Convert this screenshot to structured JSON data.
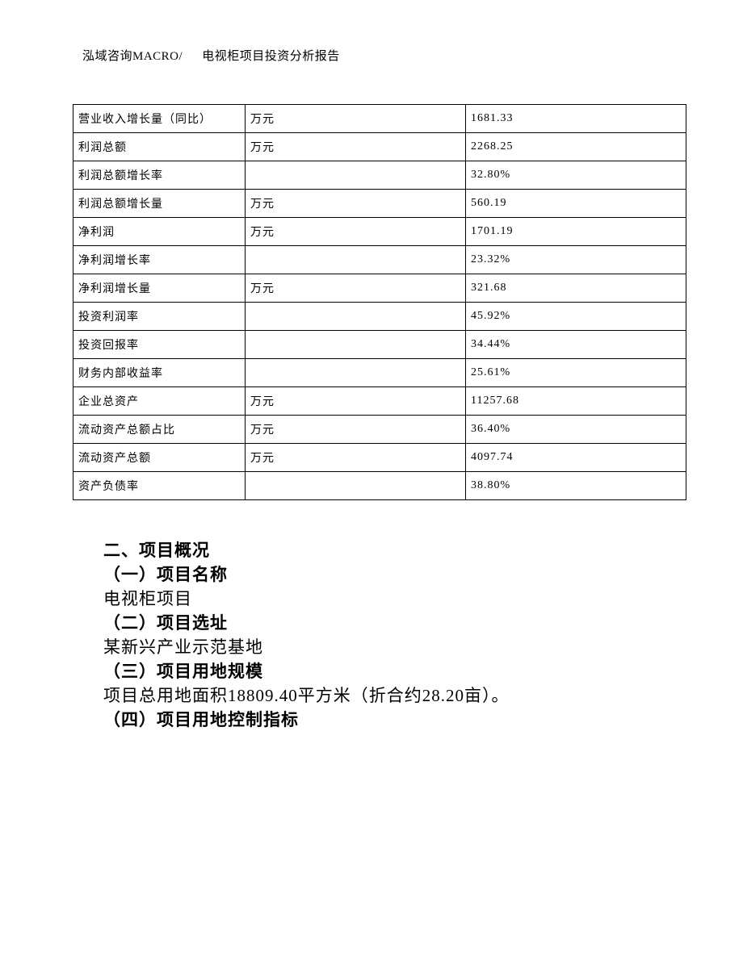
{
  "header": {
    "left": "泓域咨询MACRO/",
    "right": "电视柜项目投资分析报告"
  },
  "table": {
    "rows": [
      {
        "metric": "营业收入增长量（同比）",
        "unit": "万元",
        "value": "1681.33"
      },
      {
        "metric": "利润总额",
        "unit": "万元",
        "value": "2268.25"
      },
      {
        "metric": "利润总额增长率",
        "unit": "",
        "value": "32.80%"
      },
      {
        "metric": "利润总额增长量",
        "unit": "万元",
        "value": "560.19"
      },
      {
        "metric": "净利润",
        "unit": "万元",
        "value": "1701.19"
      },
      {
        "metric": "净利润增长率",
        "unit": "",
        "value": "23.32%"
      },
      {
        "metric": "净利润增长量",
        "unit": "万元",
        "value": "321.68"
      },
      {
        "metric": "投资利润率",
        "unit": "",
        "value": "45.92%"
      },
      {
        "metric": "投资回报率",
        "unit": "",
        "value": "34.44%"
      },
      {
        "metric": "财务内部收益率",
        "unit": "",
        "value": "25.61%"
      },
      {
        "metric": "企业总资产",
        "unit": "万元",
        "value": "11257.68"
      },
      {
        "metric": "流动资产总额占比",
        "unit": "万元",
        "value": "36.40%"
      },
      {
        "metric": "流动资产总额",
        "unit": "万元",
        "value": "4097.74"
      },
      {
        "metric": "资产负债率",
        "unit": "",
        "value": "38.80%"
      }
    ]
  },
  "sections": {
    "h2": "二、项目概况",
    "s1_title": "（一）项目名称",
    "s1_body": "电视柜项目",
    "s2_title": "（二）项目选址",
    "s2_body": "某新兴产业示范基地",
    "s3_title": "（三）项目用地规模",
    "s3_body": "项目总用地面积18809.40平方米（折合约28.20亩）。",
    "s4_title": "（四）项目用地控制指标"
  }
}
